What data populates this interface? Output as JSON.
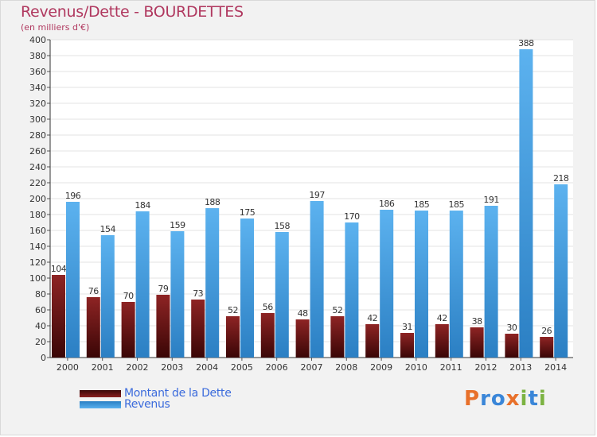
{
  "header": {
    "title": "Revenus/Dette - BOURDETTES",
    "subtitle": "(en milliers d'€)"
  },
  "legend": {
    "items": [
      {
        "label": "Montant de la Dette",
        "color": "#7a1a1a"
      },
      {
        "label": "Revenus",
        "color": "#4aa3e6"
      }
    ]
  },
  "logo": {
    "letters": [
      "P",
      "r",
      "o",
      "x",
      "i",
      "t",
      "i"
    ],
    "colors": [
      "#e8702a",
      "#3a86d8",
      "#3a86d8",
      "#e8702a",
      "#7cb342",
      "#3a86d8",
      "#7cb342"
    ]
  },
  "chart_data": {
    "type": "bar",
    "title": "Revenus/Dette - BOURDETTES",
    "subtitle": "(en milliers d'€)",
    "categories": [
      "2000",
      "2001",
      "2002",
      "2003",
      "2004",
      "2005",
      "2006",
      "2007",
      "2008",
      "2009",
      "2010",
      "2011",
      "2012",
      "2013",
      "2014"
    ],
    "series": [
      {
        "name": "Montant de la Dette",
        "color": "#7a1a1a",
        "values": [
          104,
          76,
          70,
          79,
          73,
          52,
          56,
          48,
          52,
          42,
          31,
          42,
          38,
          30,
          26
        ]
      },
      {
        "name": "Revenus",
        "color": "#4aa3e6",
        "values": [
          196,
          154,
          184,
          159,
          188,
          175,
          158,
          197,
          170,
          186,
          185,
          185,
          191,
          388,
          218
        ]
      }
    ],
    "ylim": [
      0,
      400
    ],
    "yticks": [
      0,
      20,
      40,
      60,
      80,
      100,
      120,
      140,
      160,
      180,
      200,
      220,
      240,
      260,
      280,
      300,
      320,
      340,
      360,
      380,
      400
    ],
    "grid": true,
    "legend": "bottom-left"
  }
}
